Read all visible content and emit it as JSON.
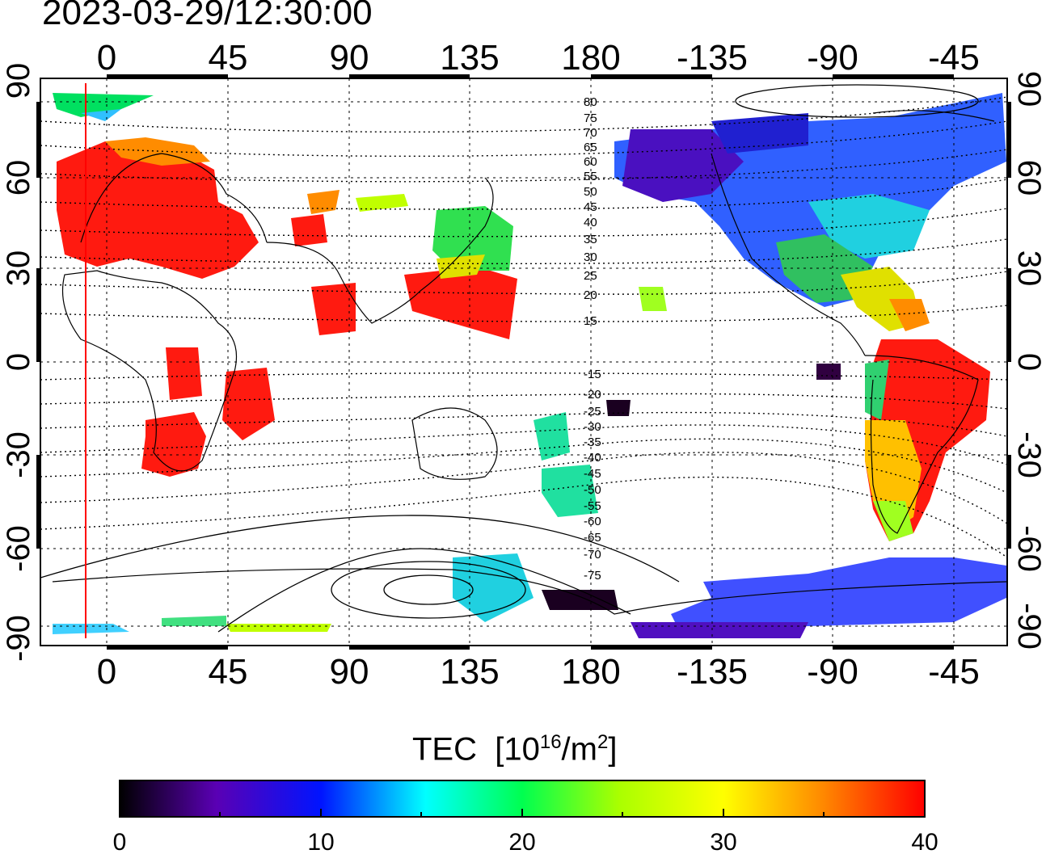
{
  "timestamp": "2023-03-29/12:30:00",
  "quantity": "TEC",
  "unit_prefix": "[10",
  "unit_exp": "16",
  "unit_mid": "/m",
  "unit_exp2": "2",
  "unit_suffix": "]",
  "lon_ticks": [
    "0",
    "45",
    "90",
    "135",
    "180",
    "-135",
    "-90",
    "-45"
  ],
  "lat_ticks_left": [
    "90",
    "60",
    "30",
    "0",
    "-30",
    "-60",
    "-90"
  ],
  "lat_ticks_right": [
    "90",
    "60",
    "30",
    "0",
    "-30",
    "-60",
    "-90"
  ],
  "contour_labels": [
    "80",
    "75",
    "70",
    "65",
    "60",
    "55",
    "50",
    "45",
    "40",
    "35",
    "30",
    "25",
    "20",
    "15",
    "-15",
    "-20",
    "-25",
    "-30",
    "-35",
    "-40",
    "-45",
    "-50",
    "-55",
    "-60",
    "-65",
    "-70",
    "-75"
  ],
  "colorbar": {
    "min": 0,
    "max": 40,
    "tick_labels": [
      "0",
      "10",
      "20",
      "30",
      "40"
    ]
  },
  "colors": {
    "marker_line": "#ff0000",
    "cb_0": "#000000",
    "cb_5": "#5a00b4",
    "cb_10": "#0014ff",
    "cb_15": "#00ffff",
    "cb_20": "#00ff50",
    "cb_25": "#aaff00",
    "cb_30": "#ffff00",
    "cb_35": "#ff8c00",
    "cb_40": "#ff0000"
  }
}
